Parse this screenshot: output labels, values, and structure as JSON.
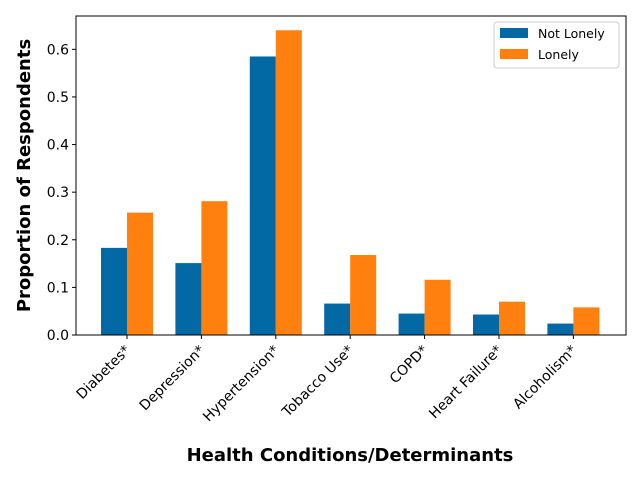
{
  "chart_data": {
    "type": "bar",
    "title": "",
    "xlabel": "Health Conditions/Determinants",
    "ylabel": "Proportion of Respondents",
    "categories": [
      "Diabetes*",
      "Depression*",
      "Hypertension*",
      "Tobacco Use*",
      "COPD*",
      "Heart Failure*",
      "Alcoholism*"
    ],
    "series": [
      {
        "name": "Not Lonely",
        "color": "#0269a4",
        "values": [
          0.183,
          0.151,
          0.585,
          0.066,
          0.045,
          0.043,
          0.024
        ]
      },
      {
        "name": "Lonely",
        "color": "#ff800e",
        "values": [
          0.257,
          0.281,
          0.64,
          0.168,
          0.116,
          0.07,
          0.058
        ]
      }
    ],
    "ylim": [
      0,
      0.67
    ],
    "yticks": [
      0.0,
      0.1,
      0.2,
      0.3,
      0.4,
      0.5,
      0.6
    ],
    "ytick_labels": [
      "0.0",
      "0.1",
      "0.2",
      "0.3",
      "0.4",
      "0.5",
      "0.6"
    ],
    "grid": false,
    "legend_position": "top-right"
  }
}
